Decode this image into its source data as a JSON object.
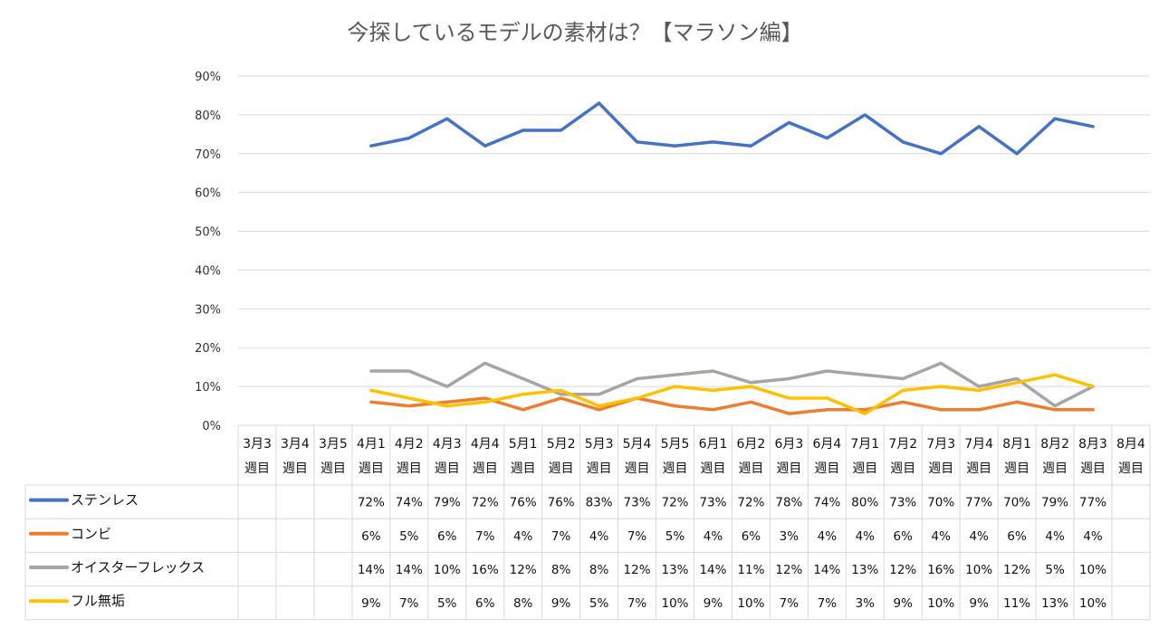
{
  "chart_data": {
    "type": "line",
    "title": "今探しているモデルの素材は？【マラソン編】",
    "ylim": [
      0,
      90
    ],
    "y_ticks": [
      "0%",
      "10%",
      "20%",
      "30%",
      "40%",
      "50%",
      "60%",
      "70%",
      "80%",
      "90%"
    ],
    "categories": [
      [
        "3月3",
        "週目"
      ],
      [
        "3月4",
        "週目"
      ],
      [
        "3月5",
        "週目"
      ],
      [
        "4月1",
        "週目"
      ],
      [
        "4月2",
        "週目"
      ],
      [
        "4月3",
        "週目"
      ],
      [
        "4月4",
        "週目"
      ],
      [
        "5月1",
        "週目"
      ],
      [
        "5月2",
        "週目"
      ],
      [
        "5月3",
        "週目"
      ],
      [
        "5月4",
        "週目"
      ],
      [
        "5月5",
        "週目"
      ],
      [
        "6月1",
        "週目"
      ],
      [
        "6月2",
        "週目"
      ],
      [
        "6月3",
        "週目"
      ],
      [
        "6月4",
        "週目"
      ],
      [
        "7月1",
        "週目"
      ],
      [
        "7月2",
        "週目"
      ],
      [
        "7月3",
        "週目"
      ],
      [
        "7月4",
        "週目"
      ],
      [
        "8月1",
        "週目"
      ],
      [
        "8月2",
        "週目"
      ],
      [
        "8月3",
        "週目"
      ],
      [
        "8月4",
        "週目"
      ]
    ],
    "series": [
      {
        "name": "ステンレス",
        "color": "#4472C4",
        "values": [
          null,
          null,
          null,
          72,
          74,
          79,
          72,
          76,
          76,
          83,
          73,
          72,
          73,
          72,
          78,
          74,
          80,
          73,
          70,
          77,
          70,
          79,
          77,
          null
        ]
      },
      {
        "name": "コンビ",
        "color": "#ED7D31",
        "values": [
          null,
          null,
          null,
          6,
          5,
          6,
          7,
          4,
          7,
          4,
          7,
          5,
          4,
          6,
          3,
          4,
          4,
          6,
          4,
          4,
          6,
          4,
          4,
          null
        ]
      },
      {
        "name": "オイスターフレックス",
        "color": "#A5A5A5",
        "values": [
          null,
          null,
          null,
          14,
          14,
          10,
          16,
          12,
          8,
          8,
          12,
          13,
          14,
          11,
          12,
          14,
          13,
          12,
          16,
          10,
          12,
          5,
          10,
          null
        ]
      },
      {
        "name": "フル無垢",
        "color": "#FFC000",
        "values": [
          null,
          null,
          null,
          9,
          7,
          5,
          6,
          8,
          9,
          5,
          7,
          10,
          9,
          10,
          7,
          7,
          3,
          9,
          10,
          9,
          11,
          13,
          10,
          null
        ]
      }
    ],
    "grid": true,
    "legend": "data-table"
  }
}
